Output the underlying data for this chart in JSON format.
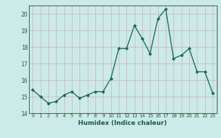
{
  "x": [
    0,
    1,
    2,
    3,
    4,
    5,
    6,
    7,
    8,
    9,
    10,
    11,
    12,
    13,
    14,
    15,
    16,
    17,
    18,
    19,
    20,
    21,
    22,
    23
  ],
  "y": [
    15.4,
    15.0,
    14.6,
    14.7,
    15.1,
    15.3,
    14.9,
    15.1,
    15.3,
    15.3,
    16.1,
    17.9,
    17.9,
    19.3,
    18.5,
    17.6,
    19.7,
    20.3,
    17.3,
    17.5,
    17.9,
    16.5,
    16.5,
    15.2
  ],
  "line_color": "#1a6b5a",
  "marker": "D",
  "markersize": 2.2,
  "linewidth": 1.0,
  "xlabel": "Humidex (Indice chaleur)",
  "xlim": [
    -0.5,
    23.5
  ],
  "ylim": [
    14,
    20.5
  ],
  "yticks": [
    14,
    15,
    16,
    17,
    18,
    19,
    20
  ],
  "xticks": [
    0,
    1,
    2,
    3,
    4,
    5,
    6,
    7,
    8,
    9,
    10,
    11,
    12,
    13,
    14,
    15,
    16,
    17,
    18,
    19,
    20,
    21,
    22,
    23
  ],
  "xtick_labels": [
    "0",
    "1",
    "2",
    "3",
    "4",
    "5",
    "6",
    "7",
    "8",
    "9",
    "10",
    "11",
    "12",
    "13",
    "14",
    "15",
    "16",
    "17",
    "18",
    "19",
    "20",
    "21",
    "22",
    "23"
  ],
  "background_color": "#cceae7",
  "grid_color": "#b0d0cc",
  "grid_color2": "#e8a0a0",
  "axes_edge_color": "#556655"
}
